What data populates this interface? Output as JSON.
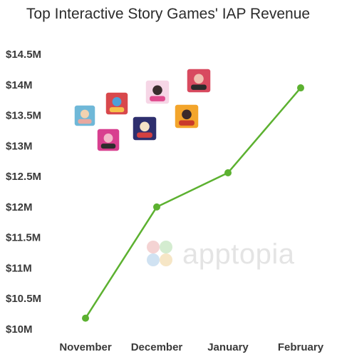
{
  "chart_data": {
    "type": "line",
    "title": "Top Interactive Story Games' IAP Revenue",
    "categories": [
      "November",
      "December",
      "January",
      "February"
    ],
    "series": [
      {
        "values": [
          10.18,
          12.0,
          12.56,
          13.95
        ]
      }
    ],
    "y_tick_labels": [
      "$10M",
      "$10.5M",
      "$11M",
      "$11.5M",
      "$12M",
      "$12.5M",
      "$13M",
      "$13.5M",
      "$14M",
      "$14.5M"
    ],
    "y_tick_values": [
      10,
      10.5,
      11,
      11.5,
      12,
      12.5,
      13,
      13.5,
      14,
      14.5
    ],
    "ylim": [
      10,
      14.5
    ],
    "grid": false,
    "line_color": "#5cb130",
    "watermark": "apptopia"
  },
  "app_icons": [
    {
      "name": "icon-1",
      "colors": [
        "#6fb8d8",
        "#e7a8a0",
        "#f2d2b0"
      ]
    },
    {
      "name": "icon-2",
      "colors": [
        "#d8484c",
        "#f6c24a",
        "#4ea0d8"
      ]
    },
    {
      "name": "icon-3",
      "colors": [
        "#d83f8f",
        "#2d2d2d",
        "#f3b7c9"
      ]
    },
    {
      "name": "icon-4",
      "colors": [
        "#2e2f6e",
        "#d34040",
        "#f6e3c6"
      ]
    },
    {
      "name": "icon-5",
      "colors": [
        "#f6d6e6",
        "#e04a8d",
        "#3a2d2d"
      ]
    },
    {
      "name": "icon-6",
      "colors": [
        "#d84a5f",
        "#2b2b2b",
        "#f0c0b0"
      ]
    },
    {
      "name": "icon-7",
      "colors": [
        "#f3a52b",
        "#c93a2a",
        "#3a2a2a"
      ]
    }
  ]
}
